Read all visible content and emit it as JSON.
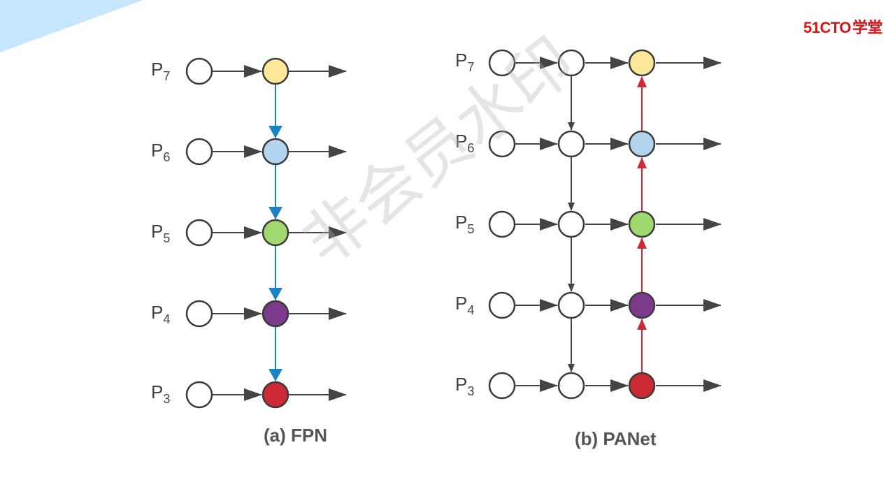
{
  "logo": {
    "brand": "51CTO",
    "suffix": "学堂"
  },
  "watermark": "非会员水印",
  "levels": [
    "7",
    "6",
    "5",
    "4",
    "3"
  ],
  "level_prefix": "P",
  "colors": {
    "P7": "#fde79a",
    "P6": "#b3d4ee",
    "P5": "#9fd86e",
    "P4": "#7d3a8c",
    "P3": "#cd2a35",
    "fpn_arrow": "#1a83c2",
    "panet_up_arrow": "#cc2a36",
    "gray_arrow": "#444444",
    "node_stroke": "#3a3a3a",
    "corner_band": "#c6e6fb"
  },
  "diagrams": [
    {
      "id": "fpn",
      "caption": "(a) FPN"
    },
    {
      "id": "panet",
      "caption": "(b) PANet"
    }
  ]
}
